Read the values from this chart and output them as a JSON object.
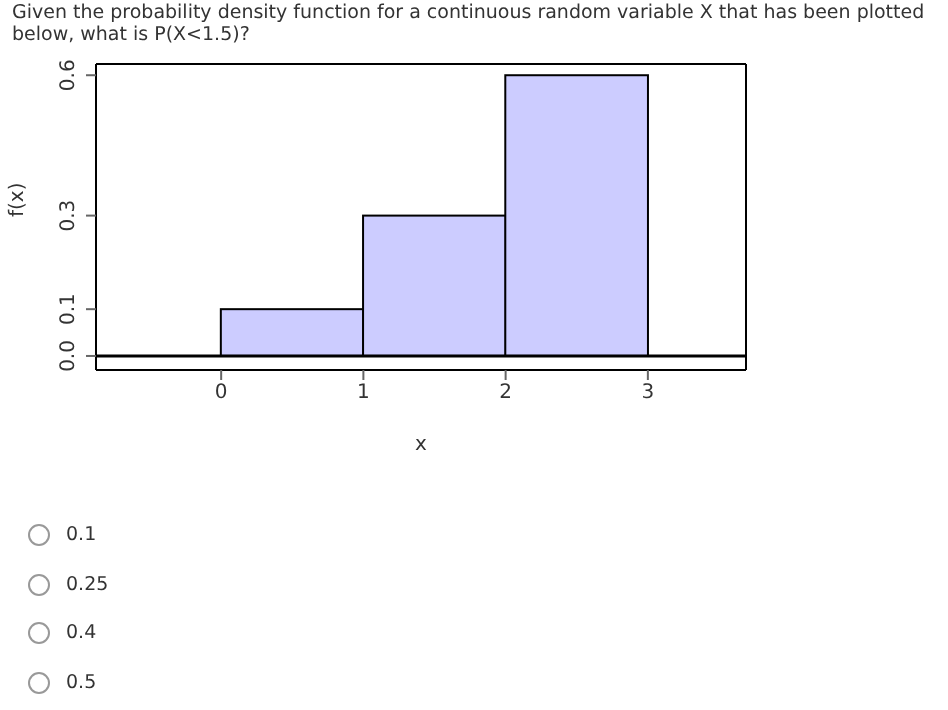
{
  "chart_data": {
    "type": "histogram",
    "title": "Given the probability density function for a continuous random variable X that has been plotted below, what is P(X<1.5)?",
    "xlabel": "x",
    "ylabel": "f(x)",
    "bins": [
      0,
      1,
      2,
      3
    ],
    "values": [
      0.1,
      0.3,
      0.6
    ],
    "color": "#ccccff",
    "xlim": [
      -0.88,
      3.69
    ],
    "xticks": [
      0,
      1,
      2,
      3
    ],
    "ylim": [
      -0.03,
      0.624
    ],
    "yticks": [
      {
        "value": 0,
        "label": "0.0"
      },
      0.1,
      0.3,
      0.6
    ],
    "ref_lines": [
      {
        "axis": "y",
        "value": 0,
        "color": "#000000"
      }
    ],
    "annotations": [
      "0.1",
      "0.25",
      "0.4",
      "0.5"
    ]
  }
}
